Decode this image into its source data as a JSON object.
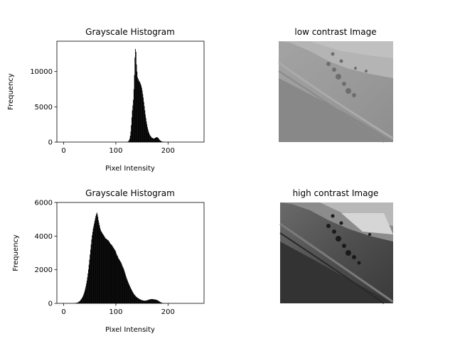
{
  "chart_data": [
    {
      "type": "bar",
      "title": "Grayscale Histogram",
      "xlabel": "Pixel Intensity",
      "ylabel": "Frequency",
      "xlim": [
        -13,
        269
      ],
      "ylim": [
        0,
        14300
      ],
      "xticks": [
        0,
        100,
        200
      ],
      "yticks": [
        0,
        5000,
        10000
      ],
      "bar_color": "#000000",
      "values_by_intensity": {
        "start": 122,
        "values": [
          40,
          80,
          150,
          300,
          500,
          900,
          1500,
          2400,
          3500,
          4500,
          5200,
          6000,
          7500,
          9500,
          12000,
          13200,
          12800,
          11000,
          10000,
          9200,
          9000,
          8800,
          8600,
          8600,
          8400,
          8200,
          8000,
          7700,
          7300,
          6800,
          6300,
          5700,
          5100,
          4500,
          3900,
          3400,
          2900,
          2500,
          2100,
          1800,
          1500,
          1300,
          1100,
          950,
          850,
          750,
          650,
          600,
          560,
          520,
          500,
          520,
          560,
          600,
          650,
          680,
          700,
          680,
          620,
          540,
          440,
          340,
          260,
          190,
          140,
          100,
          70,
          50,
          30,
          20
        ]
      }
    },
    {
      "type": "bar",
      "title": "Grayscale Histogram",
      "xlabel": "Pixel Intensity",
      "ylabel": "Frequency",
      "xlim": [
        -13,
        269
      ],
      "ylim": [
        0,
        6000
      ],
      "xticks": [
        0,
        100,
        200
      ],
      "yticks": [
        0,
        2000,
        4000,
        6000
      ],
      "bar_color": "#000000",
      "values_by_intensity": {
        "start": 20,
        "values": [
          10,
          15,
          20,
          25,
          30,
          40,
          50,
          60,
          80,
          100,
          130,
          160,
          200,
          240,
          290,
          340,
          400,
          470,
          550,
          650,
          760,
          880,
          1020,
          1180,
          1350,
          1550,
          1780,
          2020,
          2300,
          2600,
          2900,
          3200,
          3500,
          3800,
          4050,
          4250,
          4450,
          4600,
          4750,
          4900,
          5050,
          5200,
          5300,
          5400,
          5300,
          5150,
          4950,
          4800,
          4650,
          4500,
          4400,
          4300,
          4250,
          4200,
          4150,
          4100,
          4050,
          4000,
          3950,
          3900,
          3850,
          3850,
          3800,
          3800,
          3750,
          3750,
          3700,
          3650,
          3600,
          3550,
          3500,
          3500,
          3450,
          3400,
          3350,
          3300,
          3250,
          3200,
          3150,
          3100,
          3000,
          2900,
          2850,
          2800,
          2700,
          2650,
          2600,
          2550,
          2500,
          2450,
          2380,
          2300,
          2220,
          2150,
          2080,
          2000,
          1900,
          1800,
          1700,
          1600,
          1500,
          1420,
          1340,
          1260,
          1180,
          1110,
          1040,
          970,
          900,
          840,
          780,
          720,
          660,
          610,
          560,
          520,
          480,
          440,
          410,
          380,
          350,
          330,
          310,
          290,
          270,
          250,
          235,
          220,
          205,
          195,
          185,
          175,
          170,
          165,
          160,
          158,
          160,
          165,
          170,
          180,
          190,
          200,
          210,
          220,
          230,
          240,
          245,
          250,
          255,
          255,
          250,
          245,
          240,
          235,
          230,
          225,
          220,
          210,
          200,
          185,
          170,
          150,
          130,
          110,
          90,
          70,
          55,
          40,
          30,
          20,
          15,
          10,
          6,
          3
        ]
      }
    }
  ],
  "images": [
    {
      "title": "low contrast Image"
    },
    {
      "title": "high contrast Image"
    }
  ]
}
